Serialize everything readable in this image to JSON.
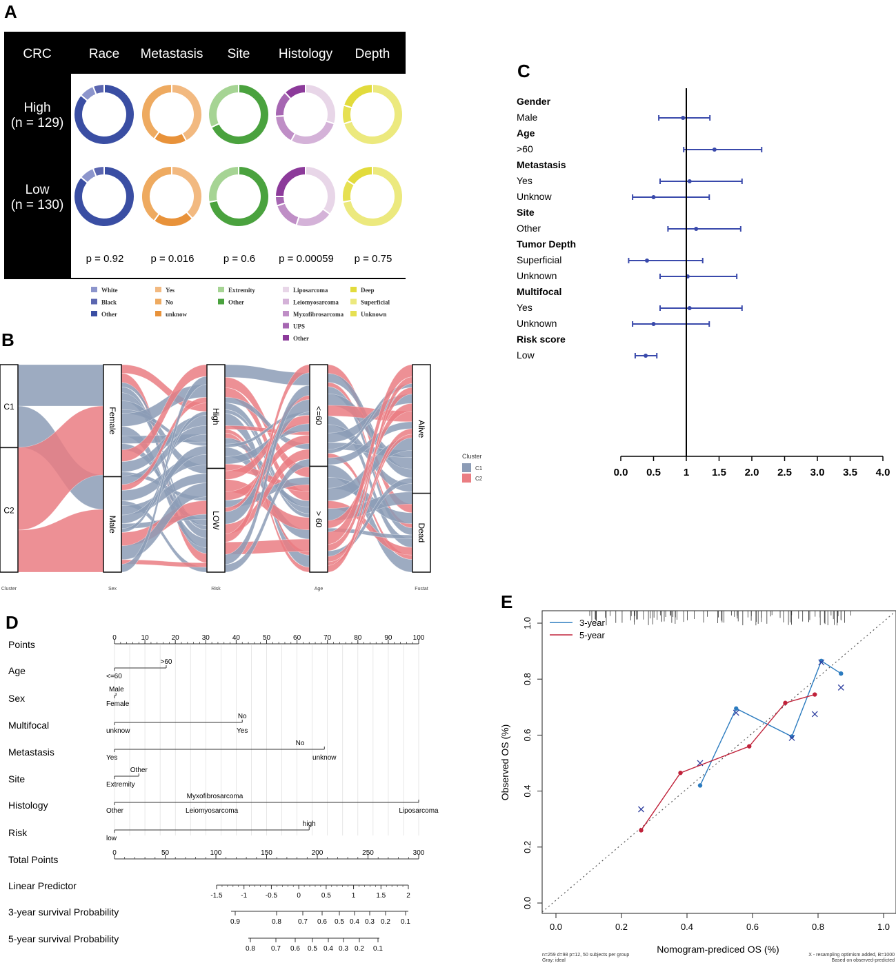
{
  "panel_labels": {
    "a": "A",
    "b": "B",
    "c": "C",
    "d": "D",
    "e": "E"
  },
  "chart_data": [
    {
      "panel": "A",
      "type": "donut-grid",
      "corner_label": "CRC",
      "columns": [
        "Race",
        "Metastasis",
        "Site",
        "Histology",
        "Depth"
      ],
      "rows": [
        {
          "label": "High",
          "n": "(n = 129)"
        },
        {
          "label": "Low",
          "n": "(n = 130)"
        }
      ],
      "p_values": [
        "p = 0.92",
        "p = 0.016",
        "p = 0.6",
        "p = 0.00059",
        "p = 0.75"
      ],
      "donuts": [
        [
          [
            {
              "k": "Other",
              "v": 0.86
            },
            {
              "k": "White",
              "v": 0.08
            },
            {
              "k": "Black",
              "v": 0.06
            }
          ],
          [
            {
              "k": "Yes",
              "v": 0.42
            },
            {
              "k": "unknow",
              "v": 0.18
            },
            {
              "k": "No",
              "v": 0.4
            }
          ],
          [
            {
              "k": "Other",
              "v": 0.68
            },
            {
              "k": "Extremity",
              "v": 0.32
            }
          ],
          [
            {
              "k": "Liposarcoma",
              "v": 0.3
            },
            {
              "k": "Leiomyosarcoma",
              "v": 0.28
            },
            {
              "k": "Myxofibrosarcoma",
              "v": 0.16
            },
            {
              "k": "UPS",
              "v": 0.14
            },
            {
              "k": "Other",
              "v": 0.12
            }
          ],
          [
            {
              "k": "Superficial",
              "v": 0.7
            },
            {
              "k": "Unknown",
              "v": 0.1
            },
            {
              "k": "Deep",
              "v": 0.2
            }
          ]
        ],
        [
          [
            {
              "k": "Other",
              "v": 0.86
            },
            {
              "k": "White",
              "v": 0.08
            },
            {
              "k": "Black",
              "v": 0.06
            }
          ],
          [
            {
              "k": "Yes",
              "v": 0.38
            },
            {
              "k": "unknow",
              "v": 0.22
            },
            {
              "k": "No",
              "v": 0.4
            }
          ],
          [
            {
              "k": "Other",
              "v": 0.72
            },
            {
              "k": "Extremity",
              "v": 0.28
            }
          ],
          [
            {
              "k": "Liposarcoma",
              "v": 0.35
            },
            {
              "k": "Leiomyosarcoma",
              "v": 0.2
            },
            {
              "k": "Myxofibrosarcoma",
              "v": 0.15
            },
            {
              "k": "UPS",
              "v": 0.05
            },
            {
              "k": "Other",
              "v": 0.25
            }
          ],
          [
            {
              "k": "Superficial",
              "v": 0.72
            },
            {
              "k": "Unknown",
              "v": 0.12
            },
            {
              "k": "Deep",
              "v": 0.16
            }
          ]
        ]
      ],
      "legend": [
        [
          {
            "k": "White",
            "label": "White"
          },
          {
            "k": "Black",
            "label": "Black"
          },
          {
            "k": "Other",
            "label": "Other"
          }
        ],
        [
          {
            "k": "Yes",
            "label": "Yes"
          },
          {
            "k": "No",
            "label": "No"
          },
          {
            "k": "unknow",
            "label": "unknow"
          }
        ],
        [
          {
            "k": "Extremity",
            "label": "Extremity"
          },
          {
            "k": "Other",
            "label": "Other"
          }
        ],
        [
          {
            "k": "Liposarcoma",
            "label": "Liposarcoma"
          },
          {
            "k": "Leiomyosarcoma",
            "label": "Leiomyosarcoma"
          },
          {
            "k": "Myxofibrosarcoma",
            "label": "Myxofibrosarcoma"
          },
          {
            "k": "UPS",
            "label": "UPS"
          },
          {
            "k": "Other",
            "label": "Other"
          }
        ],
        [
          {
            "k": "Deep",
            "label": "Deep"
          },
          {
            "k": "Superficial",
            "label": "Superficial"
          },
          {
            "k": "Unknown",
            "label": "Unknown"
          }
        ]
      ],
      "colors": [
        {
          "White": "#8c95cc",
          "Black": "#5b66b0",
          "Other": "#3a4ea3"
        },
        {
          "Yes": "#f2b980",
          "No": "#eeaa60",
          "unknow": "#e8923a"
        },
        {
          "Extremity": "#a6d494",
          "Other": "#4aa23e"
        },
        {
          "Liposarcoma": "#e8d6e8",
          "Leiomyosarcoma": "#d4b2d8",
          "Myxofibrosarcoma": "#bf8ec6",
          "UPS": "#a666b2",
          "Other": "#8c3a9a"
        },
        {
          "Deep": "#e2db3c",
          "Superficial": "#ece97e",
          "Unknown": "#e6e052"
        }
      ]
    },
    {
      "panel": "B",
      "type": "alluvial",
      "axes": [
        {
          "name": "Cluster",
          "strata": [
            "C1",
            "C2"
          ],
          "sizes": [
            40,
            60
          ]
        },
        {
          "name": "Sex",
          "strata": [
            "Female",
            "Male"
          ],
          "sizes": [
            54,
            46
          ]
        },
        {
          "name": "Risk",
          "strata": [
            "High",
            "LOW"
          ],
          "sizes": [
            50,
            50
          ]
        },
        {
          "name": "Age",
          "strata": [
            "<=60",
            "> 60"
          ],
          "sizes": [
            49,
            51
          ]
        },
        {
          "name": "Fustat",
          "strata": [
            "Alive",
            "Dead"
          ],
          "sizes": [
            62,
            38
          ]
        }
      ],
      "legend_title": "Cluster",
      "legend_items": [
        "C1",
        "C2"
      ],
      "colors": {
        "C1": "#8c9cb6",
        "C2": "#ea7d82"
      }
    },
    {
      "panel": "C",
      "type": "forest",
      "x_ticks": [
        "0.0",
        "0.5",
        "1",
        "1.5",
        "2.0",
        "2.5",
        "3.0",
        "3.5",
        "4.0"
      ],
      "xlim": [
        0,
        4
      ],
      "reference_line": 1,
      "groups": [
        {
          "title": "Gender",
          "rows": [
            {
              "label": "Male",
              "est": 0.95,
              "lo": 0.58,
              "hi": 1.36
            }
          ]
        },
        {
          "title": "Age",
          "rows": [
            {
              "label": ">60",
              "est": 1.43,
              "lo": 0.96,
              "hi": 2.15
            }
          ]
        },
        {
          "title": "Metastasis",
          "rows": [
            {
              "label": "Yes",
              "est": 1.05,
              "lo": 0.6,
              "hi": 1.85
            },
            {
              "label": "Unknow",
              "est": 0.5,
              "lo": 0.18,
              "hi": 1.35
            }
          ]
        },
        {
          "title": "Site",
          "rows": [
            {
              "label": "Other",
              "est": 1.15,
              "lo": 0.72,
              "hi": 1.83
            }
          ]
        },
        {
          "title": "Tumor Depth",
          "rows": [
            {
              "label": "Superficial",
              "est": 0.4,
              "lo": 0.12,
              "hi": 1.25
            },
            {
              "label": "Unknown",
              "est": 1.02,
              "lo": 0.6,
              "hi": 1.77
            }
          ]
        },
        {
          "title": "Multifocal",
          "rows": [
            {
              "label": "Yes",
              "est": 1.05,
              "lo": 0.6,
              "hi": 1.85
            },
            {
              "label": "Unknown",
              "est": 0.5,
              "lo": 0.18,
              "hi": 1.35
            }
          ]
        },
        {
          "title": "Risk score",
          "rows": [
            {
              "label": "Low",
              "est": 0.38,
              "lo": 0.22,
              "hi": 0.55
            }
          ]
        }
      ],
      "color": "#3949ab"
    },
    {
      "panel": "D",
      "type": "nomogram",
      "rows": [
        {
          "label": "Points",
          "kind": "axis",
          "min": 0,
          "max": 100,
          "ticks": [
            "0",
            "10",
            "20",
            "30",
            "40",
            "50",
            "60",
            "70",
            "80",
            "90",
            "100"
          ]
        },
        {
          "label": "Age",
          "kind": "line",
          "from": 0,
          "to": 17,
          "above": [
            {
              "t": ">60",
              "at": 17
            }
          ],
          "below": [
            {
              "t": "<=60",
              "at": 0
            }
          ]
        },
        {
          "label": "Sex",
          "kind": "line",
          "from": 0,
          "to": 0.5,
          "above": [
            {
              "t": "Male",
              "at": 0
            }
          ],
          "below": [
            {
              "t": "Female",
              "at": 0
            }
          ]
        },
        {
          "label": "Multifocal",
          "kind": "line",
          "from": 0,
          "to": 42,
          "above": [
            {
              "t": "No",
              "at": 42
            }
          ],
          "below": [
            {
              "t": "unknow",
              "at": 0
            },
            {
              "t": "Yes",
              "at": 42
            }
          ]
        },
        {
          "label": "Metastasis",
          "kind": "line",
          "from": 0,
          "to": 69,
          "above": [
            {
              "t": "No",
              "at": 61
            }
          ],
          "below": [
            {
              "t": "Yes",
              "at": 0
            },
            {
              "t": "unknow",
              "at": 69
            }
          ]
        },
        {
          "label": "Site",
          "kind": "line",
          "from": 0,
          "to": 8,
          "above": [
            {
              "t": "Other",
              "at": 8
            }
          ],
          "below": [
            {
              "t": "Extremity",
              "at": 0
            }
          ]
        },
        {
          "label": "Histology",
          "kind": "line",
          "from": 0,
          "to": 100,
          "above": [
            {
              "t": "Myxofibrosarcoma",
              "at": 33
            }
          ],
          "below": [
            {
              "t": "Other",
              "at": 0
            },
            {
              "t": "Leiomyosarcoma",
              "at": 32
            },
            {
              "t": "Liposarcoma",
              "at": 100
            }
          ]
        },
        {
          "label": "Risk",
          "kind": "line",
          "from": 0,
          "to": 64,
          "above": [
            {
              "t": "high",
              "at": 64
            }
          ],
          "below": [
            {
              "t": "low",
              "at": 0
            }
          ]
        },
        {
          "label": "Total Points",
          "kind": "axis",
          "min": 0,
          "max": 300,
          "ticks": [
            "0",
            "50",
            "100",
            "150",
            "200",
            "250",
            "300"
          ]
        },
        {
          "label": "Linear Predictor",
          "kind": "scale",
          "range": [
            -1.5,
            2
          ],
          "ticks": [
            "-1.5",
            "-1",
            "-0.5",
            "0",
            "0.5",
            "1",
            "1.5",
            "2"
          ]
        },
        {
          "label": "3-year survival Probability",
          "kind": "scale",
          "ticks": [
            "0.9",
            "0.8",
            "0.7",
            "0.6",
            "0.5",
            "0.4",
            "0.3",
            "0.2",
            "0.1"
          ]
        },
        {
          "label": "5-year survival Probability",
          "kind": "scale",
          "ticks": [
            "0.8",
            "0.7",
            "0.6",
            "0.5",
            "0.4",
            "0.3",
            "0.2",
            "0.1"
          ]
        }
      ]
    },
    {
      "panel": "E",
      "type": "calibration",
      "xlabel": "Nomogram-prediced OS (%)",
      "ylabel": "Observed OS (%)",
      "xlim": [
        0,
        1.05
      ],
      "ylim": [
        0,
        1.0
      ],
      "x_ticks": [
        "0.0",
        "0.2",
        "0.4",
        "0.6",
        "0.8",
        "1.0"
      ],
      "y_ticks": [
        "0.0",
        "0.2",
        "0.4",
        "0.6",
        "0.8",
        "1.0"
      ],
      "series": [
        {
          "name": "3-year",
          "color": "#2b7bbf",
          "points": [
            [
              0.44,
              0.42
            ],
            [
              0.55,
              0.695
            ],
            [
              0.72,
              0.595
            ],
            [
              0.81,
              0.865
            ],
            [
              0.87,
              0.82
            ]
          ],
          "x_marks": [
            [
              0.44,
              0.5
            ],
            [
              0.55,
              0.68
            ],
            [
              0.72,
              0.59
            ],
            [
              0.81,
              0.86
            ],
            [
              0.87,
              0.77
            ]
          ]
        },
        {
          "name": "5-year",
          "color": "#c0223a",
          "points": [
            [
              0.26,
              0.26
            ],
            [
              0.38,
              0.465
            ],
            [
              0.59,
              0.56
            ],
            [
              0.7,
              0.715
            ],
            [
              0.79,
              0.745
            ]
          ],
          "x_marks": [
            [
              0.26,
              0.335
            ],
            [
              0.79,
              0.675
            ]
          ]
        }
      ],
      "footnote_left": [
        "n=259 d=98 p=12, 50 subjects per group",
        "Gray: ideal"
      ],
      "footnote_right": [
        "X - resampling optimism added, B=1000",
        "Based on observed-predicted"
      ]
    }
  ]
}
